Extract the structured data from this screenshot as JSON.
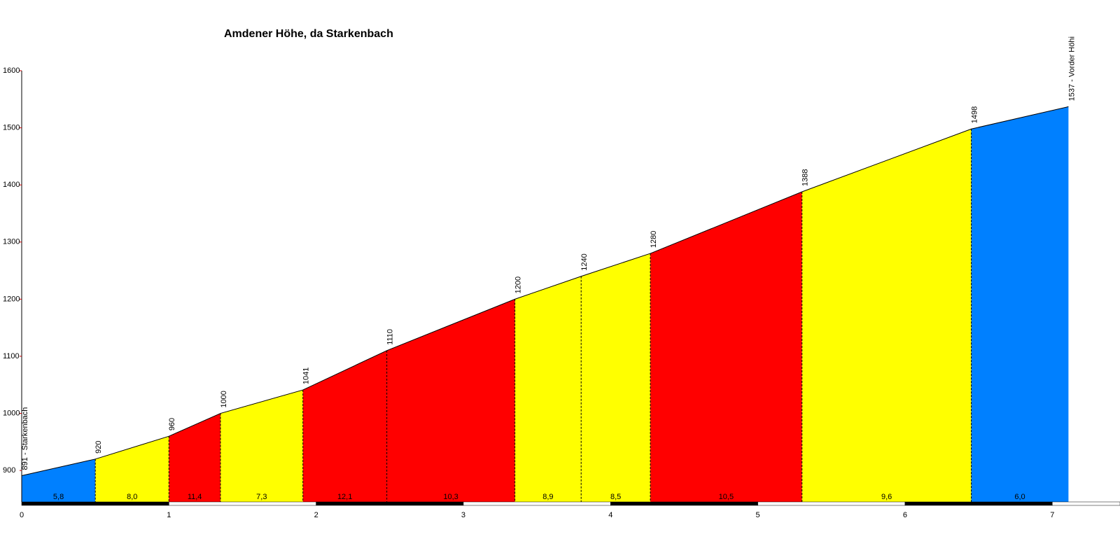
{
  "chart_data": {
    "type": "elevation-profile",
    "title": "Amdener Höhe, da Starkenbach",
    "x": [
      0,
      0.5,
      1,
      1.35,
      1.91,
      2.48,
      3.35,
      3.8,
      4.27,
      5.3,
      6.45,
      7.11
    ],
    "values": [
      891,
      920,
      960,
      1000,
      1041,
      1110,
      1200,
      1240,
      1280,
      1388,
      1498,
      1537
    ],
    "value_labels": [
      "891 - Starkenbach",
      "920",
      "960",
      "1000",
      "1041",
      "1110",
      "1200",
      "1240",
      "1280",
      "1388",
      "1498",
      "1537 - Vorder Höhi"
    ],
    "segments": {
      "values": [
        5.8,
        8.0,
        11.4,
        7.3,
        12.1,
        10.3,
        8.9,
        8.5,
        10.5,
        9.6,
        6.0
      ],
      "value_labels": [
        "5,8",
        "8,0",
        "11,4",
        "7,3",
        "12,1",
        "10,3",
        "8,9",
        "8,5",
        "10,5",
        "9,6",
        "6,0"
      ],
      "colors": [
        "#0080ff",
        "#ffff00",
        "#ff0000",
        "#ffff00",
        "#ff0000",
        "#ff0000",
        "#ffff00",
        "#ffff00",
        "#ff0000",
        "#ffff00",
        "#0080ff"
      ]
    },
    "xlim": [
      0,
      7.46
    ],
    "ylim": [
      845,
      1600
    ],
    "xticks": [
      0,
      1,
      2,
      3,
      4,
      5,
      6,
      7
    ],
    "yticks": [
      900,
      1000,
      1100,
      1200,
      1300,
      1400,
      1500,
      1600
    ]
  }
}
